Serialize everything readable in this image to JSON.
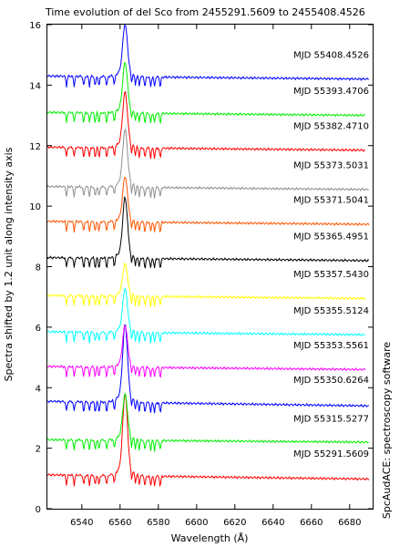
{
  "chart_data": {
    "type": "line",
    "title": "Time evolution of del Sco from 2455291.5609 to 2455408.4526",
    "xlabel": "Wavelength (Å)",
    "ylabel": "Spectra shifted by 1.2 unit along intensity axis",
    "right_label": "SpcAudACE: spectroscopy software",
    "xlim": [
      6522,
      6692
    ],
    "ylim": [
      0,
      16
    ],
    "x_ticks": [
      6540,
      6560,
      6580,
      6600,
      6620,
      6640,
      6660,
      6680
    ],
    "y_ticks": [
      0,
      2,
      4,
      6,
      8,
      10,
      12,
      14,
      16
    ],
    "grid": false,
    "legend": "inline labels at right of each spectrum",
    "series": [
      {
        "name": "MJD 55291.5609",
        "color": "#ff0000",
        "baseline": 1.12,
        "peak": 3.55,
        "continuum_end": 0.98,
        "x_start": 6522,
        "x_end": 6690
      },
      {
        "name": "MJD 55315.5277",
        "color": "#00ee00",
        "baseline": 2.28,
        "peak": 3.65,
        "continuum_end": 2.2,
        "x_start": 6522,
        "x_end": 6690
      },
      {
        "name": "MJD 55350.6264",
        "color": "#0000ff",
        "baseline": 3.55,
        "peak": 5.85,
        "continuum_end": 3.4,
        "x_start": 6522,
        "x_end": 6690
      },
      {
        "name": "MJD 55353.5561",
        "color": "#ff00ff",
        "baseline": 4.7,
        "peak": 5.95,
        "continuum_end": 4.6,
        "x_start": 6522,
        "x_end": 6688
      },
      {
        "name": "MJD 55355.5124",
        "color": "#00ffff",
        "baseline": 5.85,
        "peak": 7.15,
        "continuum_end": 5.75,
        "x_start": 6522,
        "x_end": 6688
      },
      {
        "name": "MJD 55357.5430",
        "color": "#ffff00",
        "baseline": 7.05,
        "peak": 8.0,
        "continuum_end": 6.95,
        "x_start": 6522,
        "x_end": 6688
      },
      {
        "name": "MJD 55365.4951",
        "color": "#000000",
        "baseline": 8.3,
        "peak": 10.1,
        "continuum_end": 8.2,
        "x_start": 6522,
        "x_end": 6690
      },
      {
        "name": "MJD 55371.5041",
        "color": "#ff5500",
        "baseline": 9.5,
        "peak": 10.85,
        "continuum_end": 9.4,
        "x_start": 6522,
        "x_end": 6690
      },
      {
        "name": "MJD 55373.5031",
        "color": "#909090",
        "baseline": 10.65,
        "peak": 12.35,
        "continuum_end": 10.55,
        "x_start": 6522,
        "x_end": 6690
      },
      {
        "name": "MJD 55382.4710",
        "color": "#ff0000",
        "baseline": 11.95,
        "peak": 13.6,
        "continuum_end": 11.85,
        "x_start": 6522,
        "x_end": 6688
      },
      {
        "name": "MJD 55393.4706",
        "color": "#00ee00",
        "baseline": 13.1,
        "peak": 14.6,
        "continuum_end": 13.0,
        "x_start": 6522,
        "x_end": 6688
      },
      {
        "name": "MJD 55408.4526",
        "color": "#0000ff",
        "baseline": 14.3,
        "peak": 15.85,
        "continuum_end": 14.2,
        "x_start": 6522,
        "x_end": 6690
      }
    ]
  }
}
